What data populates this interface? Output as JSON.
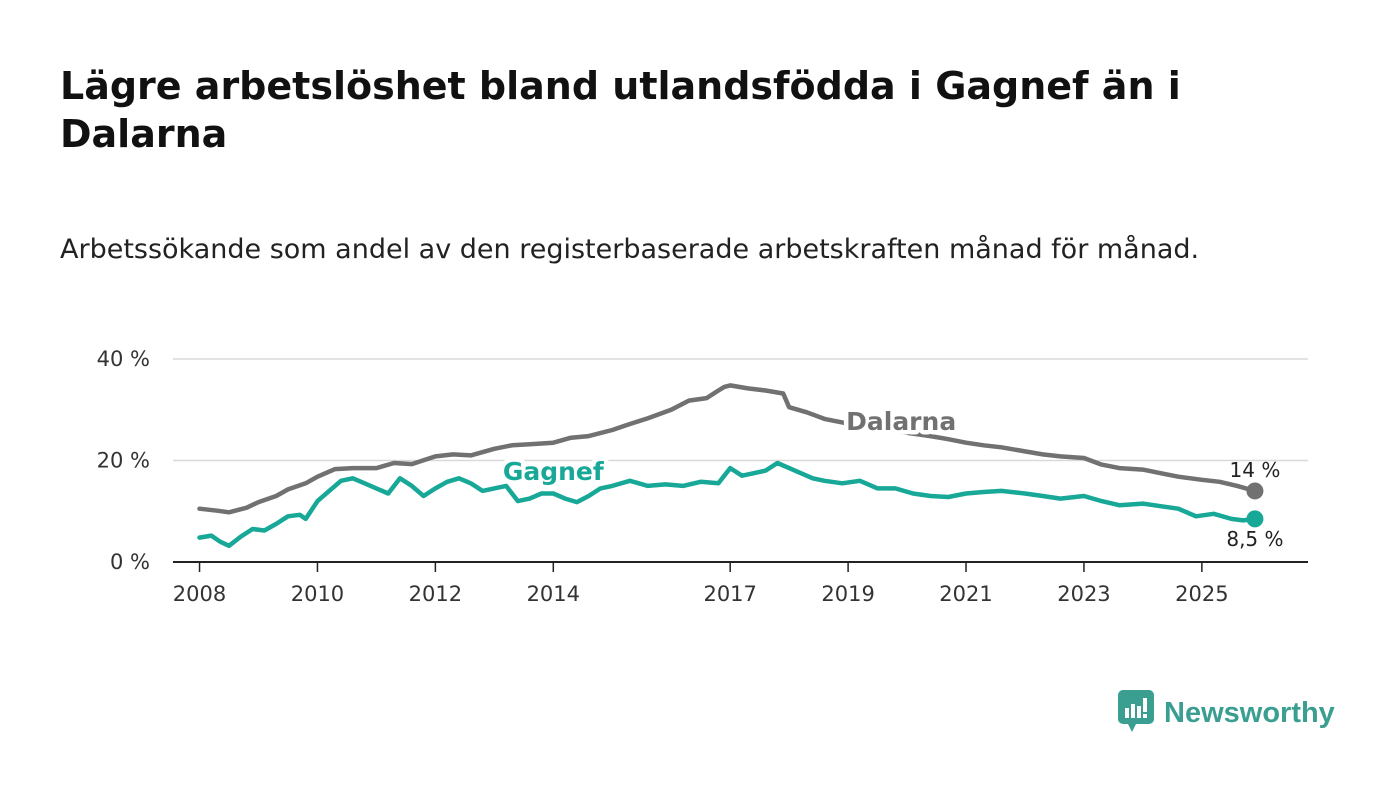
{
  "header": {
    "title": "Lägre arbetslöshet bland utlandsfödda i Gagnef än i Dalarna",
    "subtitle": "Arbetssökande som andel av den registerbaserade arbetskraften månad för månad."
  },
  "brand": {
    "name": "Newsworthy",
    "color": "#3a9e91"
  },
  "colors": {
    "dalarna": "#717171",
    "gagnef": "#17a897",
    "grid": "#d9d9d9",
    "axis": "#222222"
  },
  "chart_data": {
    "type": "line",
    "title": "Lägre arbetslöshet bland utlandsfödda i Gagnef än i Dalarna",
    "ylabel": "",
    "xlabel": "",
    "ylim": [
      0,
      40
    ],
    "xlim": [
      2007.55,
      2026.8
    ],
    "y_ticks": [
      {
        "value": 0,
        "label": "0 %"
      },
      {
        "value": 20,
        "label": "20 %"
      },
      {
        "value": 40,
        "label": "40 %"
      }
    ],
    "x_ticks": [
      {
        "value": 2008,
        "label": "2008"
      },
      {
        "value": 2010,
        "label": "2010"
      },
      {
        "value": 2012,
        "label": "2012"
      },
      {
        "value": 2014,
        "label": "2014"
      },
      {
        "value": 2017,
        "label": "2017"
      },
      {
        "value": 2019,
        "label": "2019"
      },
      {
        "value": 2021,
        "label": "2021"
      },
      {
        "value": 2023,
        "label": "2023"
      },
      {
        "value": 2025,
        "label": "2025"
      }
    ],
    "grid": "horizontal",
    "series": [
      {
        "name": "Dalarna",
        "end_label": "14 %",
        "x": [
          2008.0,
          2008.3,
          2008.5,
          2008.8,
          2009.0,
          2009.3,
          2009.5,
          2009.8,
          2010.0,
          2010.3,
          2010.6,
          2011.0,
          2011.3,
          2011.6,
          2012.0,
          2012.3,
          2012.6,
          2013.0,
          2013.3,
          2013.6,
          2014.0,
          2014.3,
          2014.6,
          2015.0,
          2015.3,
          2015.6,
          2016.0,
          2016.3,
          2016.6,
          2016.8,
          2016.9,
          2017.0,
          2017.3,
          2017.6,
          2017.9,
          2018.0,
          2018.3,
          2018.6,
          2018.9,
          2019.2,
          2019.5,
          2019.8,
          2020.1,
          2020.4,
          2020.7,
          2021.0,
          2021.3,
          2021.6,
          2022.0,
          2022.3,
          2022.6,
          2023.0,
          2023.3,
          2023.6,
          2024.0,
          2024.3,
          2024.6,
          2025.0,
          2025.3,
          2025.6,
          2025.9
        ],
        "values": [
          10.5,
          10.1,
          9.8,
          10.7,
          11.8,
          13.0,
          14.3,
          15.5,
          16.8,
          18.3,
          18.5,
          18.5,
          19.5,
          19.3,
          20.8,
          21.2,
          21.0,
          22.3,
          23.0,
          23.2,
          23.5,
          24.5,
          24.8,
          26.0,
          27.2,
          28.3,
          30.0,
          31.8,
          32.3,
          33.8,
          34.5,
          34.8,
          34.2,
          33.8,
          33.2,
          30.5,
          29.5,
          28.2,
          27.5,
          26.8,
          26.3,
          25.8,
          25.3,
          24.8,
          24.2,
          23.5,
          23.0,
          22.6,
          21.8,
          21.2,
          20.8,
          20.5,
          19.2,
          18.5,
          18.2,
          17.5,
          16.8,
          16.2,
          15.8,
          15.0,
          14.0
        ],
        "label_position": {
          "x": 2019.9,
          "y": 26.0
        }
      },
      {
        "name": "Gagnef",
        "end_label": "8,5 %",
        "x": [
          2008.0,
          2008.2,
          2008.35,
          2008.5,
          2008.7,
          2008.9,
          2009.1,
          2009.3,
          2009.5,
          2009.7,
          2009.8,
          2010.0,
          2010.2,
          2010.4,
          2010.6,
          2010.8,
          2011.0,
          2011.2,
          2011.4,
          2011.6,
          2011.8,
          2012.0,
          2012.2,
          2012.4,
          2012.6,
          2012.8,
          2013.0,
          2013.2,
          2013.4,
          2013.6,
          2013.8,
          2014.0,
          2014.2,
          2014.4,
          2014.6,
          2014.8,
          2015.0,
          2015.3,
          2015.6,
          2015.9,
          2016.2,
          2016.5,
          2016.8,
          2017.0,
          2017.2,
          2017.4,
          2017.6,
          2017.8,
          2018.0,
          2018.2,
          2018.4,
          2018.6,
          2018.9,
          2019.2,
          2019.5,
          2019.8,
          2020.1,
          2020.4,
          2020.7,
          2021.0,
          2021.3,
          2021.6,
          2022.0,
          2022.3,
          2022.6,
          2023.0,
          2023.3,
          2023.6,
          2024.0,
          2024.3,
          2024.6,
          2024.9,
          2025.2,
          2025.5,
          2025.7,
          2025.9
        ],
        "values": [
          4.8,
          5.2,
          4.0,
          3.2,
          5.0,
          6.5,
          6.2,
          7.5,
          9.0,
          9.3,
          8.5,
          12.0,
          14.0,
          16.0,
          16.5,
          15.5,
          14.5,
          13.5,
          16.5,
          15.0,
          13.0,
          14.5,
          15.8,
          16.5,
          15.5,
          14.0,
          14.5,
          15.0,
          12.0,
          12.5,
          13.5,
          13.5,
          12.5,
          11.8,
          13.0,
          14.5,
          15.0,
          16.0,
          15.0,
          15.3,
          15.0,
          15.8,
          15.5,
          18.5,
          17.0,
          17.5,
          18.0,
          19.5,
          18.5,
          17.5,
          16.5,
          16.0,
          15.5,
          16.0,
          14.5,
          14.5,
          13.5,
          13.0,
          12.8,
          13.5,
          13.8,
          14.0,
          13.5,
          13.0,
          12.5,
          13.0,
          12.0,
          11.2,
          11.5,
          11.0,
          10.5,
          9.0,
          9.5,
          8.5,
          8.2,
          8.5
        ],
        "label_position": {
          "x": 2014.0,
          "y": 16.2
        }
      }
    ]
  }
}
